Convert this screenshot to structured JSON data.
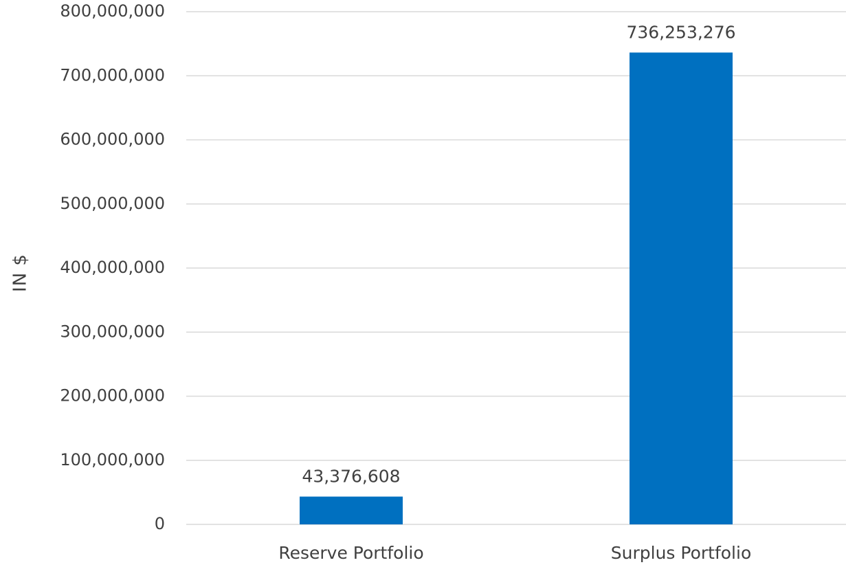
{
  "chart_data": {
    "type": "bar",
    "title": "",
    "xlabel": "",
    "ylabel": "IN $",
    "categories": [
      "Reserve Portfolio",
      "Surplus Portfolio"
    ],
    "values": [
      43376608,
      736253276
    ],
    "data_labels": [
      "43,376,608",
      "736,253,276"
    ],
    "ylim": [
      0,
      800000000
    ],
    "y_ticks": [
      0,
      100000000,
      200000000,
      300000000,
      400000000,
      500000000,
      600000000,
      700000000,
      800000000
    ],
    "y_tick_labels": [
      "0",
      "100,000,000",
      "200,000,000",
      "300,000,000",
      "400,000,000",
      "500,000,000",
      "600,000,000",
      "700,000,000",
      "800,000,000"
    ],
    "grid": true,
    "legend": "none",
    "colors": {
      "bar": "#0070C0",
      "grid": "#D9D9D9",
      "text": "#404040"
    }
  }
}
